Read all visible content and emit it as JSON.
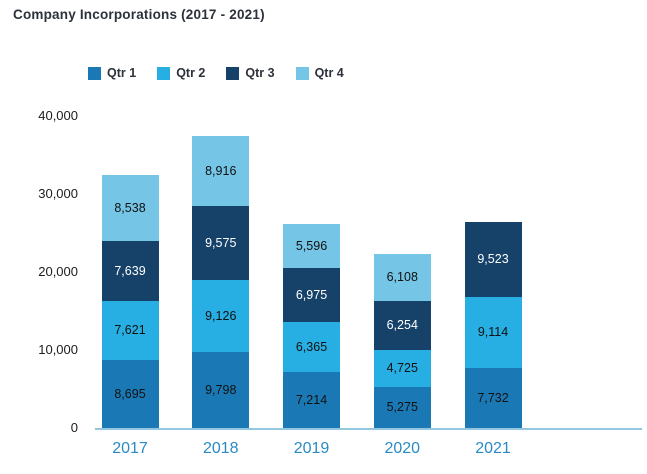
{
  "title": "Company Incorporations (2017 - 2021)",
  "chart_data": {
    "type": "bar",
    "stacked": true,
    "title": "Company Incorporations (2017 - 2021)",
    "categories": [
      "2017",
      "2018",
      "2019",
      "2020",
      "2021"
    ],
    "series": [
      {
        "name": "Qtr 1",
        "color": "#1a79b5",
        "label_color": "#111111",
        "values": [
          8695,
          9798,
          7214,
          5275,
          7732
        ]
      },
      {
        "name": "Qtr 2",
        "color": "#27aee3",
        "label_color": "#111111",
        "values": [
          7621,
          9126,
          6365,
          4725,
          9114
        ]
      },
      {
        "name": "Qtr 3",
        "color": "#16426a",
        "label_color": "#ffffff",
        "values": [
          7639,
          9575,
          6975,
          6254,
          9523
        ]
      },
      {
        "name": "Qtr 4",
        "color": "#75c5e6",
        "label_color": "#111111",
        "values": [
          8538,
          8916,
          5596,
          6108,
          null
        ]
      }
    ],
    "totals": [
      32493,
      37415,
      26150,
      22362,
      26369
    ],
    "ylim": [
      0,
      40000
    ],
    "yticks": [
      0,
      10000,
      20000,
      30000,
      40000
    ],
    "ytick_labels": [
      "0",
      "10,000",
      "20,000",
      "30,000",
      "40,000"
    ],
    "xlabel": "",
    "ylabel": "",
    "grid": false,
    "legend_position": "top",
    "value_labels": true
  },
  "colors": {
    "title_text": "#2c313b",
    "axis_text": "#1c1c1c",
    "year_text": "#2a8ac6",
    "baseline": "#93c6e0",
    "background": "#ffffff"
  }
}
